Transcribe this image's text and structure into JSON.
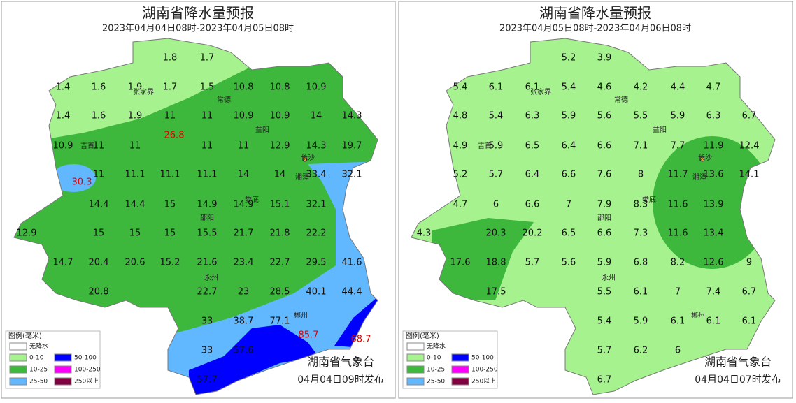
{
  "legend": {
    "title": "图例(毫米)",
    "items": [
      {
        "label": "无降水",
        "color": "#ffffff"
      },
      {
        "label": "0-10",
        "color": "#a6f28f"
      },
      {
        "label": "10-25",
        "color": "#3db83d"
      },
      {
        "label": "25-50",
        "color": "#61b8ff"
      },
      {
        "label": "50-100",
        "color": "#0000fe"
      },
      {
        "label": "100-250",
        "color": "#fa00fa"
      },
      {
        "label": "250以上",
        "color": "#800040"
      }
    ]
  },
  "panels": [
    {
      "title": "湖南省降水量预报",
      "subtitle": "2023年04月04日08时-2023年04月05日08时",
      "cities": [
        "张家界",
        "常德",
        "益阳",
        "长沙",
        "吉首",
        "湘潭",
        "娄底",
        "邵阳",
        "永州",
        "郴州"
      ],
      "values": [
        1.8,
        1.7,
        1.4,
        1.6,
        1.9,
        1.7,
        1.5,
        10.8,
        10.8,
        10.9,
        1.4,
        1.6,
        1.9,
        11,
        11,
        10.9,
        10.9,
        14,
        14.3,
        10.9,
        11,
        11,
        26.8,
        11,
        11,
        12.9,
        14.3,
        19.7,
        30.3,
        11,
        11.1,
        11.1,
        11.1,
        14,
        14,
        33.4,
        32.1,
        14.4,
        14.4,
        15,
        14.9,
        14.9,
        15.1,
        32.1,
        12.9,
        15,
        15,
        15,
        15.5,
        21.7,
        21.8,
        22.2,
        14.7,
        20.4,
        20.6,
        15.2,
        21.6,
        23.4,
        22.7,
        29.5,
        41.6,
        20.8,
        22.7,
        23,
        28.5,
        40.1,
        44.4,
        33,
        38.7,
        77.1,
        85.7,
        68.7,
        33,
        57.6,
        57.7
      ],
      "agency": "湖南省气象台",
      "issued": "04月04日09时发布"
    },
    {
      "title": "湖南省降水量预报",
      "subtitle": "2023年04月05日08时-2023年04月06日08时",
      "cities": [
        "张家界",
        "常德",
        "益阳",
        "长沙",
        "吉首",
        "湘潭",
        "娄底",
        "邵阳",
        "永州",
        "郴州"
      ],
      "values": [
        5.2,
        3.9,
        5.4,
        6.1,
        6.1,
        5.4,
        4.6,
        4.2,
        4.4,
        4.7,
        4.8,
        5.4,
        6.3,
        5.9,
        5.6,
        5.5,
        5.9,
        6.3,
        6.7,
        4.9,
        5.9,
        6.5,
        6.4,
        6.6,
        7.1,
        7.7,
        11.9,
        12.4,
        5.2,
        5.7,
        6.4,
        6.6,
        7.6,
        8,
        11.7,
        13.6,
        14.1,
        4.7,
        6,
        6.6,
        7,
        7.9,
        8.3,
        11.6,
        13.9,
        4.3,
        20.3,
        20.2,
        6.5,
        6.6,
        7.3,
        11.6,
        13.4,
        17.6,
        18.8,
        5.7,
        5.6,
        5.9,
        6.8,
        8.2,
        12.6,
        9,
        17.5,
        5.5,
        6.1,
        7,
        7.4,
        6.7,
        5.4,
        5.9,
        6.1,
        6.1,
        6.1,
        5.7,
        6.2,
        6,
        6.7
      ],
      "agency": "湖南省气象台",
      "issued": "04月04日07时发布"
    }
  ]
}
